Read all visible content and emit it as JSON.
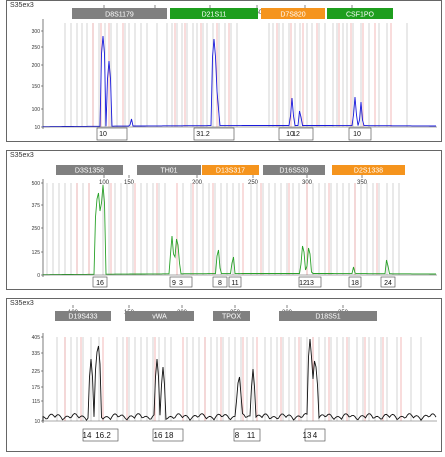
{
  "panels": [
    {
      "title": "S35ex3",
      "color": "#1a1adb",
      "ruler": [
        "100",
        "150",
        "200",
        "250",
        "300",
        "350"
      ],
      "loci": [
        {
          "name": "D8S1179",
          "color": "#808080"
        },
        {
          "name": "D21S11",
          "color": "#1e9e1e"
        },
        {
          "name": "D7S820",
          "color": "#f5941d"
        },
        {
          "name": "CSF1PO",
          "color": "#1e9e1e"
        }
      ],
      "yticks": [
        "10",
        "100",
        "150",
        "200",
        "250",
        "300"
      ],
      "alleles": [
        "10",
        "31.2",
        "10",
        "12",
        "10"
      ]
    },
    {
      "title": "S35ex3",
      "color": "#2aa22a",
      "ruler": [
        "100",
        "150",
        "200",
        "250",
        "300",
        "350"
      ],
      "loci": [
        {
          "name": "D3S1358",
          "color": "#808080"
        },
        {
          "name": "TH01",
          "color": "#808080"
        },
        {
          "name": "D13S317",
          "color": "#f5941d"
        },
        {
          "name": "D16S539",
          "color": "#808080"
        },
        {
          "name": "D2S1338",
          "color": "#f5941d"
        }
      ],
      "yticks": [
        "0",
        "125",
        "250",
        "375",
        "500"
      ],
      "alleles": [
        "16",
        "9",
        "3",
        "8",
        "11",
        "12",
        "13",
        "18",
        "24"
      ]
    },
    {
      "title": "S35ex3",
      "color": "#111111",
      "ruler": [
        "100",
        "150",
        "200",
        "250",
        "300",
        "350"
      ],
      "loci": [
        {
          "name": "D19S433",
          "color": "#808080"
        },
        {
          "name": "vWA",
          "color": "#808080"
        },
        {
          "name": "TPOX",
          "color": "#808080"
        },
        {
          "name": "D18S51",
          "color": "#808080"
        }
      ],
      "yticks": [
        "10",
        "115",
        "175",
        "225",
        "335",
        "405"
      ],
      "alleles": [
        "14",
        "16.2",
        "16",
        "18",
        "8",
        "11",
        "13",
        "4"
      ]
    }
  ]
}
